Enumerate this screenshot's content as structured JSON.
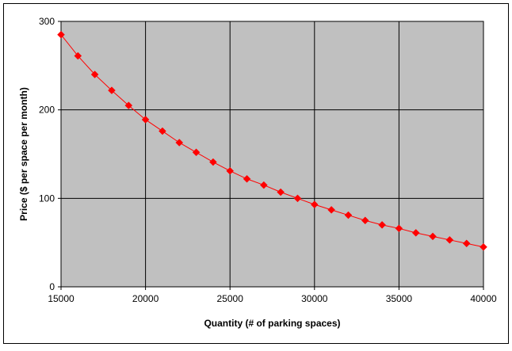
{
  "chart_data": {
    "type": "line",
    "title": "",
    "xlabel": "Quantity (# of parking spaces)",
    "ylabel": "Price ($ per space per month)",
    "xlim": [
      15000,
      40000
    ],
    "ylim": [
      0,
      300
    ],
    "x_ticks": [
      "15000",
      "20000",
      "25000",
      "30000",
      "35000",
      "40000"
    ],
    "y_ticks": [
      "0",
      "100",
      "200",
      "300"
    ],
    "grid": true,
    "legend": "none",
    "colors": {
      "plot_background": "#c0c0c0",
      "series": "#ff0000",
      "marker": "#ff0000",
      "gridlines": "#000000",
      "border": "#000000"
    },
    "series": [
      {
        "marker": "diamond",
        "x": [
          15000,
          16000,
          17000,
          18000,
          19000,
          20000,
          21000,
          22000,
          23000,
          24000,
          25000,
          26000,
          27000,
          28000,
          29000,
          30000,
          31000,
          32000,
          33000,
          34000,
          35000,
          36000,
          37000,
          38000,
          39000,
          40000
        ],
        "y": [
          285,
          261,
          240,
          222,
          205,
          189,
          176,
          163,
          152,
          141,
          131,
          122,
          115,
          107,
          100,
          93,
          87,
          81,
          75,
          70,
          66,
          61,
          57,
          53,
          49,
          45
        ]
      }
    ]
  }
}
